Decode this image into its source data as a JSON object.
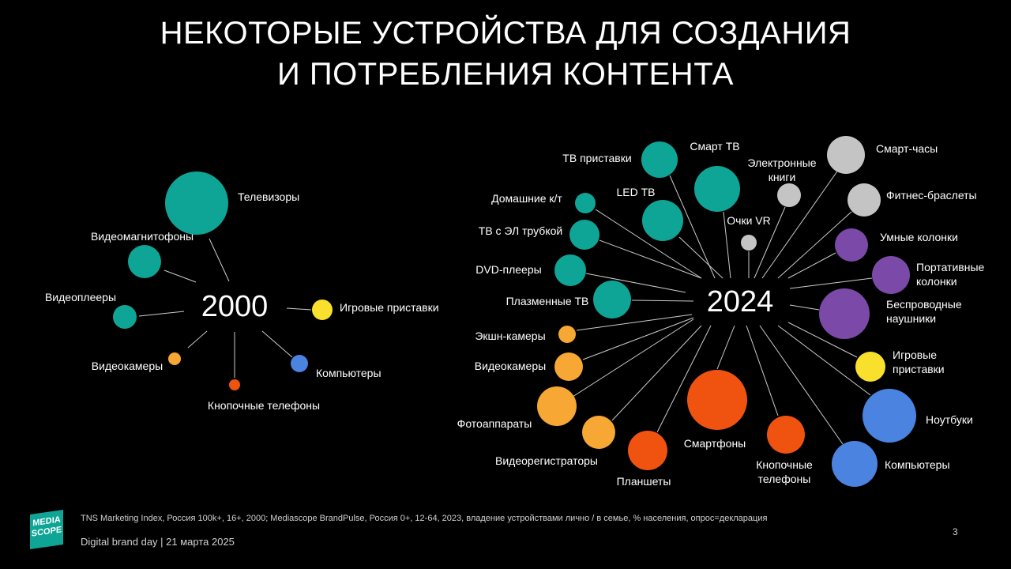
{
  "title": {
    "line1": "НЕКОТОРЫЕ УСТРОЙСТВА ДЛЯ СОЗДАНИЯ",
    "line2": "И ПОТРЕБЛЕНИЯ КОНТЕНТА"
  },
  "colors": {
    "tv_video": "#0fa596",
    "gray": "#c4c4c4",
    "purple": "#7b4aa8",
    "yellow": "#f9e02c",
    "blue": "#4a83e0",
    "orange": "#f7a733",
    "red_orange": "#f0530f"
  },
  "groups": [
    {
      "hub": "2000",
      "items": [
        {
          "label": "Телевизоры",
          "color": "tv_video",
          "size": 40
        },
        {
          "label": "Видеомагнитофоны",
          "color": "tv_video",
          "size": 21
        },
        {
          "label": "Видеоплееры",
          "color": "tv_video",
          "size": 15
        },
        {
          "label": "Видеокамеры",
          "color": "orange",
          "size": 8
        },
        {
          "label": "Кнопочные телефоны",
          "color": "red_orange",
          "size": 7
        },
        {
          "label": "Компьютеры",
          "color": "blue",
          "size": 11
        },
        {
          "label": "Игровые приставки",
          "color": "yellow",
          "size": 13
        }
      ]
    },
    {
      "hub": "2024",
      "items": [
        {
          "label": "ТВ приставки",
          "color": "tv_video",
          "size": 23
        },
        {
          "label": "Смарт ТВ",
          "color": "tv_video",
          "size": 29
        },
        {
          "label": "Электронные\nкниги",
          "color": "gray",
          "size": 15
        },
        {
          "label": "Смарт-часы",
          "color": "gray",
          "size": 24
        },
        {
          "label": "Домашние к/т",
          "color": "tv_video",
          "size": 13
        },
        {
          "label": "LED ТВ",
          "color": "tv_video",
          "size": 26
        },
        {
          "label": "Фитнес-браслеты",
          "color": "gray",
          "size": 21
        },
        {
          "label": "ТВ с ЭЛ трубкой",
          "color": "tv_video",
          "size": 19
        },
        {
          "label": "Очки VR",
          "color": "gray",
          "size": 10
        },
        {
          "label": "Умные колонки",
          "color": "purple",
          "size": 21
        },
        {
          "label": "DVD-плееры",
          "color": "tv_video",
          "size": 20
        },
        {
          "label": "Портативные\nколонки",
          "color": "purple",
          "size": 24
        },
        {
          "label": "Плазменные ТВ",
          "color": "tv_video",
          "size": 24
        },
        {
          "label": "Беспроводные\nнаушники",
          "color": "purple",
          "size": 32
        },
        {
          "label": "Экшн-камеры",
          "color": "orange",
          "size": 11
        },
        {
          "label": "Игровые\nприставки",
          "color": "yellow",
          "size": 19
        },
        {
          "label": "Видеокамеры",
          "color": "orange",
          "size": 18
        },
        {
          "label": "Ноутбуки",
          "color": "blue",
          "size": 34
        },
        {
          "label": "Фотоаппараты",
          "color": "orange",
          "size": 25
        },
        {
          "label": "Смартфоны",
          "color": "red_orange",
          "size": 38
        },
        {
          "label": "Компьютеры",
          "color": "blue",
          "size": 29
        },
        {
          "label": "Видеорегистраторы",
          "color": "orange",
          "size": 21
        },
        {
          "label": "Кнопочные\nтелефоны",
          "color": "red_orange",
          "size": 24
        },
        {
          "label": "Планшеты",
          "color": "red_orange",
          "size": 25
        }
      ]
    }
  ],
  "footer": {
    "source": "TNS Marketing Index, Россия 100k+, 16+, 2000; Mediascope BrandPulse, Россия 0+, 12-64, 2023, владение устройствами лично / в семье, % населения, опрос=декларация",
    "event": "Digital brand day |  21 марта 2025",
    "page": "3",
    "logo_line1": "MEDIA",
    "logo_line2": "SCOPE"
  }
}
